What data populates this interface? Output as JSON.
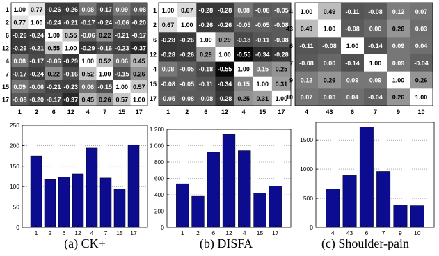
{
  "captions": [
    "(a) CK+",
    "(b) DISFA",
    "(c) Shoulder-pain"
  ],
  "chart_data": [
    {
      "type": "heatmap",
      "labels": [
        "1",
        "2",
        "6",
        "12",
        "4",
        "7",
        "15",
        "17"
      ],
      "matrix": [
        [
          1.0,
          0.77,
          -0.26,
          -0.26,
          0.08,
          -0.17,
          0.09,
          -0.08
        ],
        [
          0.77,
          1.0,
          -0.24,
          -0.21,
          -0.17,
          -0.24,
          -0.06,
          -0.2
        ],
        [
          -0.26,
          -0.24,
          1.0,
          0.55,
          -0.06,
          0.22,
          -0.21,
          -0.17
        ],
        [
          -0.26,
          -0.21,
          0.55,
          1.0,
          -0.29,
          -0.16,
          -0.23,
          -0.37
        ],
        [
          0.08,
          -0.17,
          -0.06,
          -0.29,
          1.0,
          0.52,
          0.06,
          0.45
        ],
        [
          -0.17,
          -0.24,
          0.22,
          -0.16,
          0.52,
          1.0,
          -0.15,
          0.26
        ],
        [
          0.09,
          -0.06,
          -0.21,
          -0.23,
          0.06,
          -0.15,
          1.0,
          0.57
        ],
        [
          -0.08,
          -0.2,
          -0.17,
          -0.37,
          0.45,
          0.26,
          0.57,
          1.0
        ]
      ]
    },
    {
      "type": "heatmap",
      "labels": [
        "1",
        "2",
        "6",
        "12",
        "4",
        "15",
        "17"
      ],
      "matrix": [
        [
          1.0,
          0.67,
          -0.28,
          -0.28,
          0.08,
          -0.08,
          -0.05
        ],
        [
          0.67,
          1.0,
          -0.26,
          -0.26,
          -0.05,
          -0.05,
          -0.08
        ],
        [
          -0.28,
          -0.26,
          1.0,
          0.29,
          -0.18,
          -0.11,
          -0.08
        ],
        [
          -0.28,
          -0.26,
          0.29,
          1.0,
          -0.55,
          -0.34,
          -0.28
        ],
        [
          0.08,
          -0.05,
          -0.18,
          -0.55,
          1.0,
          0.15,
          0.25
        ],
        [
          -0.08,
          -0.05,
          -0.11,
          -0.34,
          0.15,
          1.0,
          0.31
        ],
        [
          -0.05,
          -0.08,
          -0.08,
          -0.28,
          0.25,
          0.31,
          1.0
        ]
      ]
    },
    {
      "type": "heatmap",
      "labels": [
        "4",
        "43",
        "6",
        "7",
        "9",
        "10"
      ],
      "matrix": [
        [
          1.0,
          0.49,
          -0.11,
          -0.08,
          0.12,
          0.07
        ],
        [
          0.49,
          1.0,
          -0.08,
          -0.0,
          0.26,
          0.03
        ],
        [
          -0.11,
          -0.08,
          1.0,
          -0.14,
          0.09,
          0.04
        ],
        [
          -0.08,
          -0.0,
          -0.14,
          1.0,
          0.09,
          -0.04
        ],
        [
          0.12,
          0.26,
          0.09,
          0.09,
          1.0,
          0.26
        ],
        [
          0.07,
          0.03,
          0.04,
          -0.04,
          0.26,
          1.0
        ]
      ]
    },
    {
      "type": "bar",
      "categories": [
        "1",
        "2",
        "6",
        "12",
        "4",
        "7",
        "15",
        "17"
      ],
      "values": [
        175,
        117,
        123,
        131,
        194,
        121,
        94,
        202
      ],
      "ylim": [
        0,
        250
      ],
      "yticks": [
        0,
        50,
        100,
        150,
        200,
        250
      ],
      "ytick_labels": [
        "0",
        "50",
        "100",
        "150",
        "200",
        "250"
      ],
      "grid": true,
      "color": "#0b0c8f"
    },
    {
      "type": "bar",
      "categories": [
        "1",
        "2",
        "6",
        "12",
        "4",
        "15",
        "17"
      ],
      "values": [
        535,
        382,
        920,
        1140,
        940,
        420,
        505
      ],
      "ylim": [
        0,
        1200
      ],
      "yticks": [
        0,
        200,
        400,
        600,
        800,
        1000,
        1200
      ],
      "ytick_labels": [
        "0",
        "200",
        "400",
        "600",
        "800",
        "1 000",
        "1 200"
      ],
      "grid": true,
      "color": "#0b0c8f"
    },
    {
      "type": "bar",
      "categories": [
        "4",
        "43",
        "6",
        "7",
        "9",
        "10"
      ],
      "values": [
        660,
        890,
        1720,
        960,
        385,
        375
      ],
      "ylim": [
        0,
        1800
      ],
      "yticks": [
        0,
        500,
        1000,
        1500
      ],
      "ytick_labels": [
        "0",
        "500",
        "1000",
        "1500"
      ],
      "grid": true,
      "color": "#0b0c8f"
    }
  ]
}
